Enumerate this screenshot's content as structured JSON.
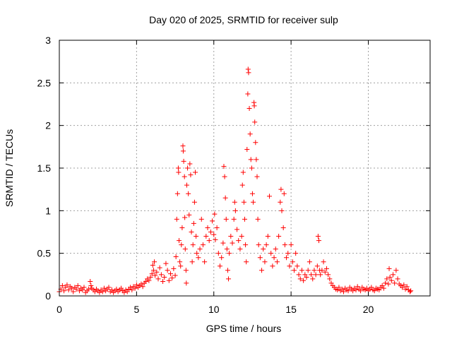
{
  "chart_data": {
    "type": "scatter",
    "title": "Day 020 of 2025, SRMTID for receiver sulp",
    "xlabel": "GPS time / hours",
    "ylabel": "SRMTID / TECUs",
    "xlim": [
      0,
      24
    ],
    "ylim": [
      0,
      3
    ],
    "xticks": [
      0,
      5,
      10,
      15,
      20
    ],
    "yticks": [
      0,
      0.5,
      1,
      1.5,
      2,
      2.5,
      3
    ],
    "xtick_labels": [
      "0",
      "5",
      "10",
      "15",
      "20"
    ],
    "ytick_labels": [
      "0",
      "0.5",
      "1",
      "1.5",
      "2",
      "2.5",
      "3"
    ],
    "grid": true,
    "marker": "+",
    "color": "#ff0000",
    "series": [
      {
        "name": "SRMTID",
        "points": [
          [
            0.0,
            0.05
          ],
          [
            0.1,
            0.08
          ],
          [
            0.2,
            0.12
          ],
          [
            0.3,
            0.06
          ],
          [
            0.4,
            0.1
          ],
          [
            0.5,
            0.13
          ],
          [
            0.6,
            0.07
          ],
          [
            0.7,
            0.11
          ],
          [
            0.8,
            0.09
          ],
          [
            0.9,
            0.05
          ],
          [
            1.0,
            0.1
          ],
          [
            1.1,
            0.08
          ],
          [
            1.2,
            0.12
          ],
          [
            1.3,
            0.06
          ],
          [
            1.4,
            0.09
          ],
          [
            1.5,
            0.07
          ],
          [
            1.6,
            0.1
          ],
          [
            1.7,
            0.04
          ],
          [
            1.8,
            0.06
          ],
          [
            1.9,
            0.08
          ],
          [
            2.0,
            0.17
          ],
          [
            2.05,
            0.12
          ],
          [
            2.1,
            0.09
          ],
          [
            2.2,
            0.07
          ],
          [
            2.3,
            0.05
          ],
          [
            2.4,
            0.08
          ],
          [
            2.5,
            0.06
          ],
          [
            2.6,
            0.04
          ],
          [
            2.7,
            0.07
          ],
          [
            2.8,
            0.05
          ],
          [
            2.9,
            0.09
          ],
          [
            3.0,
            0.06
          ],
          [
            3.1,
            0.08
          ],
          [
            3.2,
            0.1
          ],
          [
            3.3,
            0.05
          ],
          [
            3.4,
            0.07
          ],
          [
            3.5,
            0.04
          ],
          [
            3.6,
            0.06
          ],
          [
            3.7,
            0.08
          ],
          [
            3.8,
            0.05
          ],
          [
            3.9,
            0.07
          ],
          [
            4.0,
            0.09
          ],
          [
            4.1,
            0.06
          ],
          [
            4.2,
            0.04
          ],
          [
            4.3,
            0.07
          ],
          [
            4.4,
            0.05
          ],
          [
            4.5,
            0.08
          ],
          [
            4.6,
            0.1
          ],
          [
            4.7,
            0.07
          ],
          [
            4.8,
            0.11
          ],
          [
            4.9,
            0.09
          ],
          [
            5.0,
            0.13
          ],
          [
            5.1,
            0.1
          ],
          [
            5.2,
            0.12
          ],
          [
            5.3,
            0.14
          ],
          [
            5.4,
            0.11
          ],
          [
            5.5,
            0.15
          ],
          [
            5.6,
            0.17
          ],
          [
            5.7,
            0.2
          ],
          [
            5.8,
            0.18
          ],
          [
            5.9,
            0.22
          ],
          [
            6.0,
            0.26
          ],
          [
            6.05,
            0.36
          ],
          [
            6.1,
            0.3
          ],
          [
            6.15,
            0.4
          ],
          [
            6.2,
            0.24
          ],
          [
            6.3,
            0.28
          ],
          [
            6.4,
            0.2
          ],
          [
            6.5,
            0.33
          ],
          [
            6.6,
            0.25
          ],
          [
            6.7,
            0.17
          ],
          [
            6.8,
            0.22
          ],
          [
            6.9,
            0.38
          ],
          [
            7.0,
            0.3
          ],
          [
            7.1,
            0.18
          ],
          [
            7.2,
            0.26
          ],
          [
            7.3,
            0.21
          ],
          [
            7.4,
            0.32
          ],
          [
            7.5,
            0.24
          ],
          [
            7.55,
            0.46
          ],
          [
            7.6,
            0.9
          ],
          [
            7.65,
            1.2
          ],
          [
            7.7,
            1.5
          ],
          [
            7.72,
            1.45
          ],
          [
            7.75,
            0.65
          ],
          [
            7.8,
            0.4
          ],
          [
            7.85,
            0.35
          ],
          [
            7.9,
            0.6
          ],
          [
            7.95,
            0.8
          ],
          [
            8.0,
            1.76
          ],
          [
            8.02,
            1.7
          ],
          [
            8.05,
            1.58
          ],
          [
            8.1,
            1.4
          ],
          [
            8.12,
            0.92
          ],
          [
            8.15,
            0.55
          ],
          [
            8.2,
            0.3
          ],
          [
            8.22,
            0.15
          ],
          [
            8.25,
            1.3
          ],
          [
            8.3,
            1.5
          ],
          [
            8.35,
            1.2
          ],
          [
            8.4,
            0.95
          ],
          [
            8.45,
            1.55
          ],
          [
            8.5,
            1.42
          ],
          [
            8.55,
            0.75
          ],
          [
            8.6,
            0.4
          ],
          [
            8.65,
            0.6
          ],
          [
            8.7,
            0.85
          ],
          [
            8.75,
            1.1
          ],
          [
            8.8,
            1.45
          ],
          [
            8.85,
            0.7
          ],
          [
            8.9,
            0.5
          ],
          [
            9.0,
            0.45
          ],
          [
            9.1,
            0.55
          ],
          [
            9.2,
            0.9
          ],
          [
            9.3,
            0.6
          ],
          [
            9.4,
            0.4
          ],
          [
            9.5,
            0.7
          ],
          [
            9.6,
            0.8
          ],
          [
            9.7,
            0.65
          ],
          [
            9.8,
            0.75
          ],
          [
            9.9,
            0.88
          ],
          [
            10.0,
            0.72
          ],
          [
            10.05,
            0.96
          ],
          [
            10.1,
            0.66
          ],
          [
            10.2,
            0.8
          ],
          [
            10.3,
            0.5
          ],
          [
            10.4,
            0.35
          ],
          [
            10.5,
            0.45
          ],
          [
            10.6,
            0.62
          ],
          [
            10.65,
            1.52
          ],
          [
            10.7,
            1.4
          ],
          [
            10.75,
            1.15
          ],
          [
            10.8,
            0.9
          ],
          [
            10.85,
            0.55
          ],
          [
            10.9,
            0.3
          ],
          [
            10.95,
            0.2
          ],
          [
            11.0,
            0.5
          ],
          [
            11.1,
            0.7
          ],
          [
            11.2,
            0.62
          ],
          [
            11.3,
            0.9
          ],
          [
            11.35,
            1.1
          ],
          [
            11.4,
            1.0
          ],
          [
            11.5,
            0.78
          ],
          [
            11.6,
            0.65
          ],
          [
            11.7,
            0.55
          ],
          [
            11.8,
            0.7
          ],
          [
            11.85,
            1.3
          ],
          [
            11.9,
            1.45
          ],
          [
            11.95,
            1.1
          ],
          [
            12.0,
            0.9
          ],
          [
            12.05,
            0.6
          ],
          [
            12.1,
            0.4
          ],
          [
            12.15,
            1.72
          ],
          [
            12.2,
            2.37
          ],
          [
            12.22,
            2.66
          ],
          [
            12.25,
            2.62
          ],
          [
            12.3,
            2.2
          ],
          [
            12.35,
            1.9
          ],
          [
            12.4,
            1.6
          ],
          [
            12.45,
            1.5
          ],
          [
            12.5,
            1.2
          ],
          [
            12.55,
            1.1
          ],
          [
            12.6,
            2.27
          ],
          [
            12.62,
            2.23
          ],
          [
            12.65,
            2.04
          ],
          [
            12.7,
            1.8
          ],
          [
            12.75,
            1.6
          ],
          [
            12.8,
            1.4
          ],
          [
            12.85,
            0.9
          ],
          [
            12.9,
            0.6
          ],
          [
            13.0,
            0.45
          ],
          [
            13.1,
            0.3
          ],
          [
            13.2,
            0.55
          ],
          [
            13.3,
            0.4
          ],
          [
            13.4,
            0.6
          ],
          [
            13.5,
            0.7
          ],
          [
            13.6,
            1.17
          ],
          [
            13.7,
            0.5
          ],
          [
            13.8,
            0.35
          ],
          [
            13.9,
            0.45
          ],
          [
            14.0,
            0.55
          ],
          [
            14.1,
            0.4
          ],
          [
            14.2,
            0.7
          ],
          [
            14.3,
            1.1
          ],
          [
            14.35,
            1.25
          ],
          [
            14.4,
            1.0
          ],
          [
            14.5,
            0.8
          ],
          [
            14.55,
            1.2
          ],
          [
            14.6,
            0.6
          ],
          [
            14.7,
            0.45
          ],
          [
            14.8,
            0.5
          ],
          [
            14.9,
            0.35
          ],
          [
            15.0,
            0.6
          ],
          [
            15.1,
            0.4
          ],
          [
            15.2,
            0.3
          ],
          [
            15.3,
            0.5
          ],
          [
            15.4,
            0.35
          ],
          [
            15.5,
            0.25
          ],
          [
            15.6,
            0.2
          ],
          [
            15.7,
            0.3
          ],
          [
            15.8,
            0.18
          ],
          [
            15.9,
            0.25
          ],
          [
            16.0,
            0.22
          ],
          [
            16.1,
            0.3
          ],
          [
            16.2,
            0.4
          ],
          [
            16.3,
            0.25
          ],
          [
            16.4,
            0.2
          ],
          [
            16.5,
            0.3
          ],
          [
            16.6,
            0.25
          ],
          [
            16.7,
            0.35
          ],
          [
            16.75,
            0.7
          ],
          [
            16.8,
            0.65
          ],
          [
            16.85,
            0.3
          ],
          [
            16.9,
            0.25
          ],
          [
            17.0,
            0.3
          ],
          [
            17.1,
            0.4
          ],
          [
            17.2,
            0.28
          ],
          [
            17.3,
            0.32
          ],
          [
            17.4,
            0.25
          ],
          [
            17.5,
            0.2
          ],
          [
            17.6,
            0.15
          ],
          [
            17.7,
            0.12
          ],
          [
            17.8,
            0.1
          ],
          [
            17.9,
            0.08
          ],
          [
            18.0,
            0.07
          ],
          [
            18.1,
            0.1
          ],
          [
            18.2,
            0.06
          ],
          [
            18.3,
            0.08
          ],
          [
            18.4,
            0.05
          ],
          [
            18.5,
            0.09
          ],
          [
            18.6,
            0.07
          ],
          [
            18.7,
            0.06
          ],
          [
            18.8,
            0.1
          ],
          [
            18.9,
            0.08
          ],
          [
            19.0,
            0.06
          ],
          [
            19.1,
            0.09
          ],
          [
            19.2,
            0.07
          ],
          [
            19.3,
            0.11
          ],
          [
            19.4,
            0.08
          ],
          [
            19.5,
            0.06
          ],
          [
            19.6,
            0.1
          ],
          [
            19.7,
            0.08
          ],
          [
            19.8,
            0.07
          ],
          [
            19.9,
            0.09
          ],
          [
            20.0,
            0.06
          ],
          [
            20.1,
            0.08
          ],
          [
            20.2,
            0.1
          ],
          [
            20.3,
            0.07
          ],
          [
            20.4,
            0.06
          ],
          [
            20.5,
            0.09
          ],
          [
            20.6,
            0.08
          ],
          [
            20.7,
            0.07
          ],
          [
            20.8,
            0.1
          ],
          [
            20.9,
            0.12
          ],
          [
            21.0,
            0.09
          ],
          [
            21.1,
            0.15
          ],
          [
            21.2,
            0.2
          ],
          [
            21.3,
            0.14
          ],
          [
            21.35,
            0.32
          ],
          [
            21.4,
            0.22
          ],
          [
            21.5,
            0.18
          ],
          [
            21.6,
            0.25
          ],
          [
            21.7,
            0.15
          ],
          [
            21.8,
            0.3
          ],
          [
            21.9,
            0.2
          ],
          [
            22.0,
            0.14
          ],
          [
            22.1,
            0.12
          ],
          [
            22.2,
            0.1
          ],
          [
            22.3,
            0.13
          ],
          [
            22.4,
            0.08
          ],
          [
            22.5,
            0.11
          ],
          [
            22.6,
            0.07
          ],
          [
            22.7,
            0.05
          ],
          [
            22.75,
            0.06
          ]
        ]
      }
    ]
  }
}
